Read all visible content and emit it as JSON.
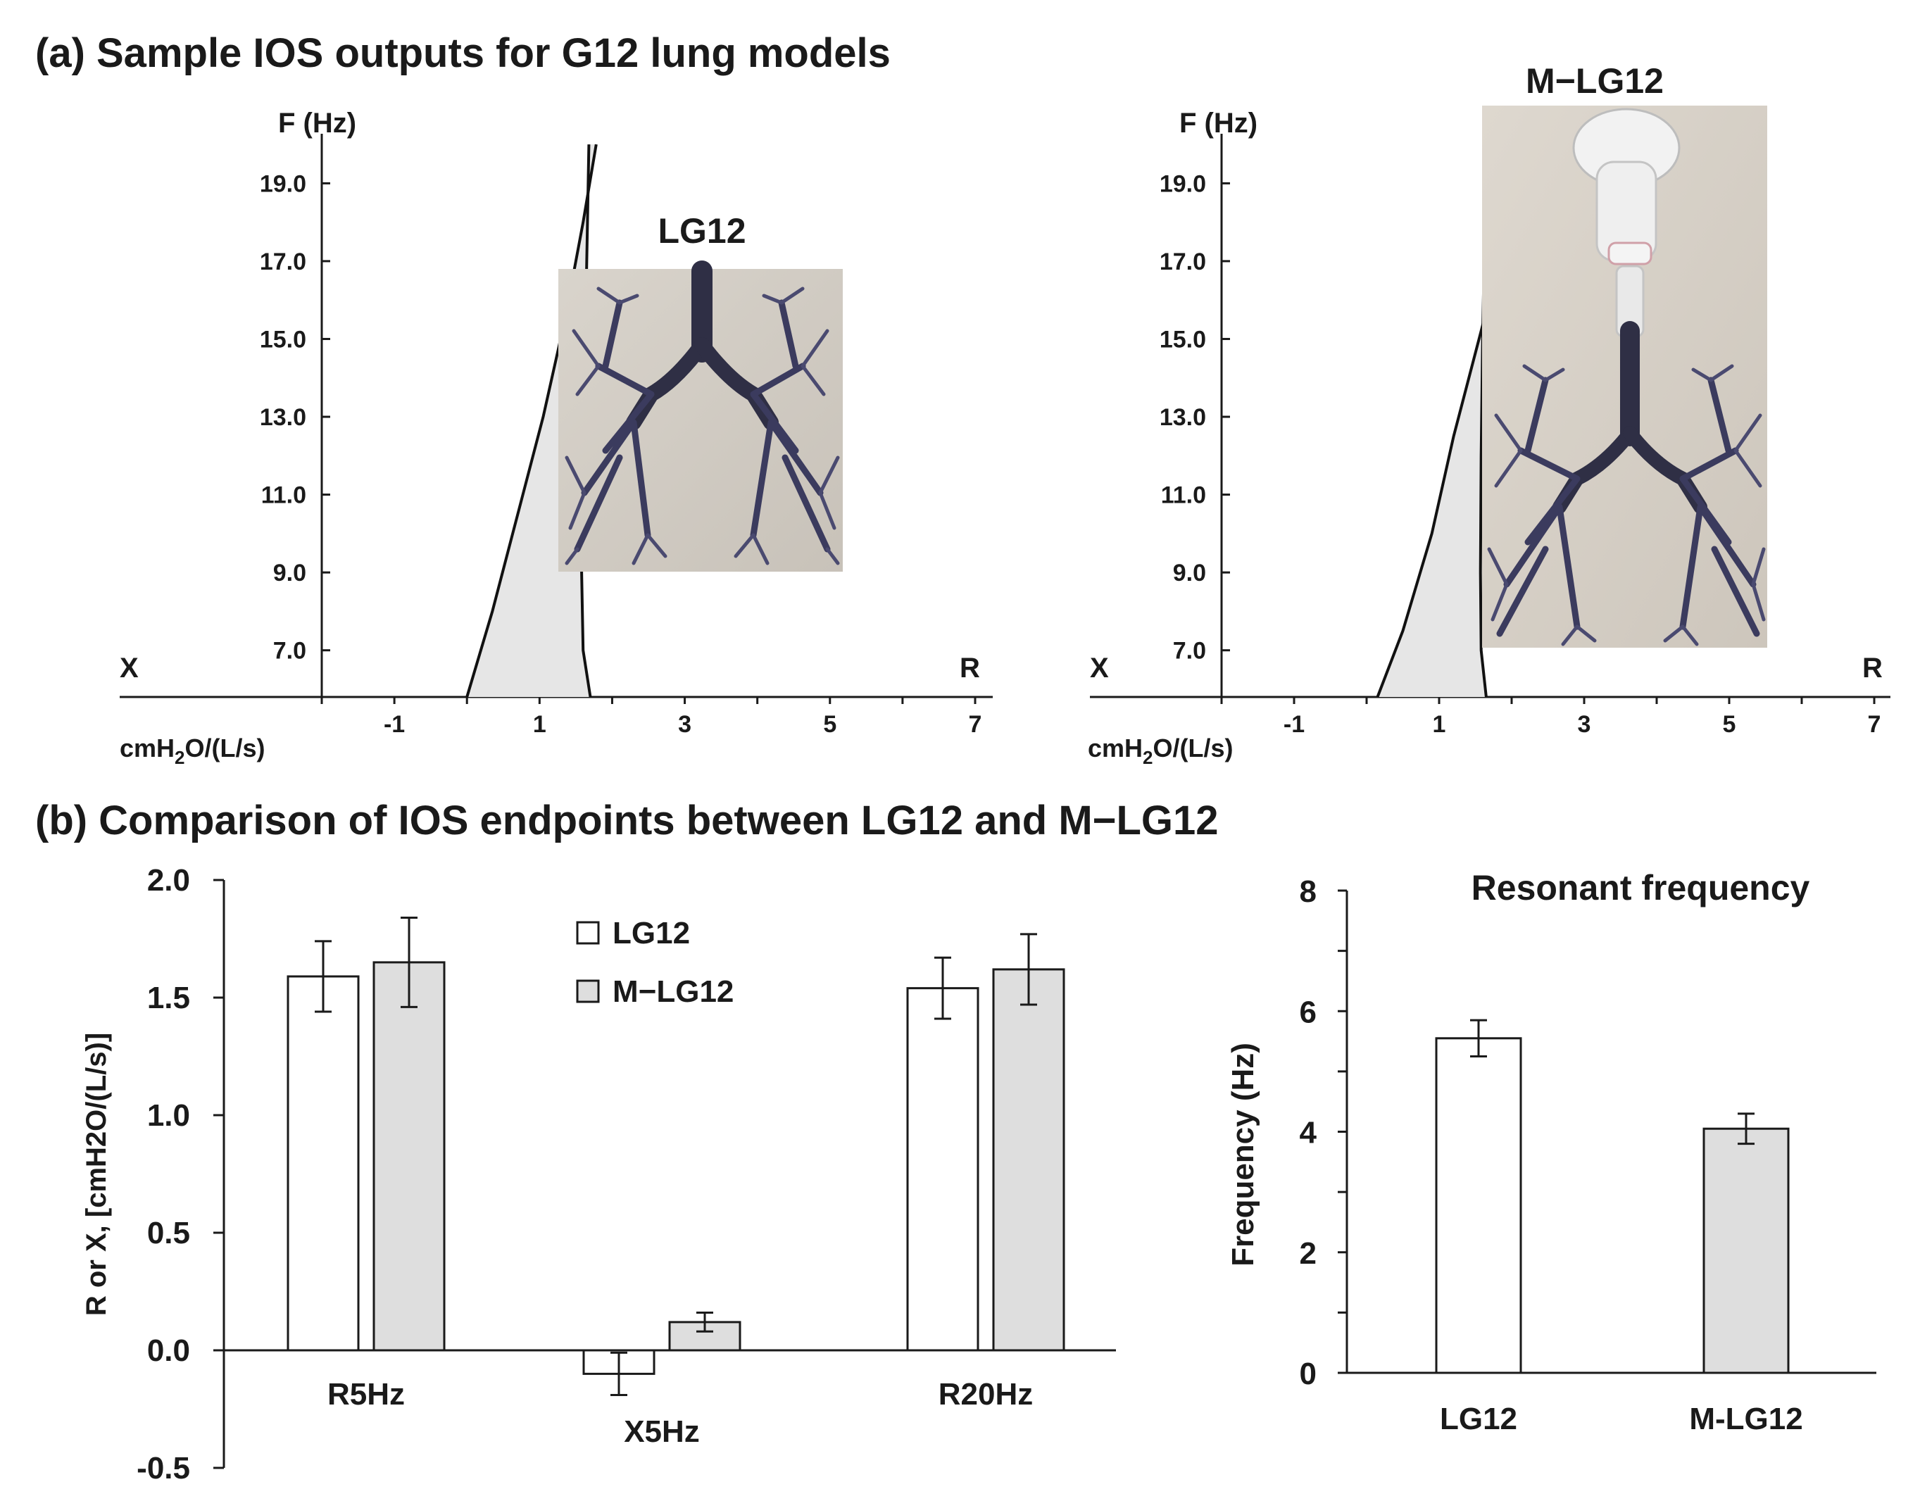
{
  "titles": {
    "a": "(a) Sample IOS outputs for G12 lung models",
    "b": "(b) Comparison of IOS endpoints between LG12 and M−LG12"
  },
  "chart_data": [
    {
      "type": "line",
      "panel": "a-left",
      "photo_label": "LG12",
      "ylabel": "F (Hz)",
      "xlabel": "cmH2O/(L/s)",
      "left_axis_label": "X",
      "right_axis_label": "R",
      "xlim": [
        -2,
        7
      ],
      "ylim": [
        5.8,
        20.4
      ],
      "x_ticks": [
        -1,
        1,
        3,
        5,
        7
      ],
      "y_ticks": [
        "7.0",
        "9.0",
        "11.0",
        "13.0",
        "15.0",
        "17.0",
        "19.0"
      ],
      "series": [
        {
          "role": "X curve",
          "x": [
            0.0,
            0.35,
            0.7,
            1.05,
            1.35,
            1.6,
            1.78
          ],
          "y": [
            5.8,
            8.0,
            10.5,
            13.0,
            15.5,
            18.0,
            20.0
          ]
        },
        {
          "role": "R curve",
          "x": [
            1.7,
            1.6,
            1.58,
            1.6,
            1.63,
            1.66,
            1.68
          ],
          "y": [
            5.8,
            7.0,
            9.0,
            12.0,
            15.0,
            18.0,
            20.0
          ]
        }
      ],
      "shaded_region": "between X and R curves below intersection"
    },
    {
      "type": "line",
      "panel": "a-right",
      "photo_label": "M−LG12",
      "ylabel": "F (Hz)",
      "xlabel": "cmH2O/(L/s)",
      "left_axis_label": "X",
      "right_axis_label": "R",
      "xlim": [
        -2,
        7
      ],
      "ylim": [
        5.8,
        20.4
      ],
      "x_ticks": [
        -1,
        1,
        3,
        5,
        7
      ],
      "y_ticks": [
        "7.0",
        "9.0",
        "11.0",
        "13.0",
        "15.0",
        "17.0",
        "19.0"
      ],
      "series": [
        {
          "role": "X curve",
          "x": [
            0.15,
            0.5,
            0.9,
            1.2,
            1.55,
            1.9,
            2.3
          ],
          "y": [
            5.8,
            7.5,
            10.0,
            12.5,
            15.0,
            17.5,
            20.0
          ]
        },
        {
          "role": "R curve",
          "x": [
            1.65,
            1.58,
            1.57,
            1.58,
            1.6,
            1.63,
            1.66
          ],
          "y": [
            5.8,
            7.0,
            9.0,
            12.0,
            15.0,
            18.0,
            20.0
          ]
        }
      ],
      "shaded_region": "between X and R curves below intersection"
    },
    {
      "type": "bar",
      "panel": "b-left",
      "ylabel": "R or X, [cmH2O/(L/s)]",
      "ylim": [
        -0.5,
        2.0
      ],
      "y_ticks": [
        "-0.5",
        "0.0",
        "0.5",
        "1.0",
        "1.5",
        "2.0"
      ],
      "categories": [
        "R5Hz",
        "X5Hz",
        "R20Hz"
      ],
      "legend": "top-center",
      "series": [
        {
          "name": "LG12",
          "values": [
            1.59,
            -0.1,
            1.54
          ],
          "errors": [
            0.15,
            0.09,
            0.13
          ]
        },
        {
          "name": "M−LG12",
          "values": [
            1.65,
            0.12,
            1.62
          ],
          "errors": [
            0.19,
            0.04,
            0.15
          ]
        }
      ]
    },
    {
      "type": "bar",
      "panel": "b-right",
      "title": "Resonant frequency",
      "ylabel": "Frequency (Hz)",
      "ylim": [
        0,
        8
      ],
      "y_ticks": [
        "0",
        "2",
        "4",
        "6",
        "8"
      ],
      "categories": [
        "LG12",
        "M-LG12"
      ],
      "values": [
        5.55,
        4.05
      ],
      "errors": [
        0.3,
        0.25
      ]
    }
  ]
}
